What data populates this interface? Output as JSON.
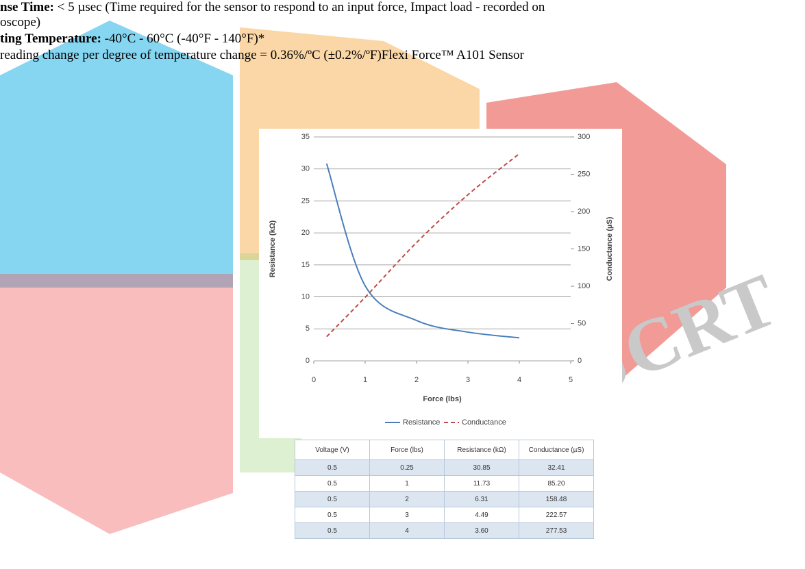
{
  "lines": [
    {
      "label": "nse Time:",
      "text": " < 5 µsec (Time required for the sensor to respond to an input force, Impact load - recorded on"
    },
    {
      "text": "oscope)"
    },
    {
      "label": "ting Temperature:",
      "text": " -40°C - 60°C (-40°F - 140°F)*"
    },
    {
      "text": "reading change per degree of temperature change = 0.36%/ºC (±0.2%/ºF)Flexi Force™ A101 Sensor"
    }
  ],
  "watermark": "JCRT",
  "chart_data": {
    "type": "line",
    "x_label": "Force (lbs)",
    "y_label": "Resistance (kΩ)",
    "y2_label": "Conductance (µS)",
    "x": [
      0.25,
      1,
      2,
      3,
      4
    ],
    "series": [
      {
        "name": "Resistance",
        "color": "#4a7ebb",
        "values": [
          30.85,
          11.73,
          6.31,
          4.49,
          3.6
        ]
      },
      {
        "name": "Conductance",
        "color": "#be4b48",
        "axis": "y2",
        "values": [
          32.41,
          85.2,
          158.48,
          222.57,
          277.53
        ]
      }
    ],
    "xlim": [
      0,
      5
    ],
    "xticks": [
      0,
      1,
      2,
      3,
      4,
      5
    ],
    "ylim": [
      0,
      35
    ],
    "yticks": [
      0,
      5,
      10,
      15,
      20,
      25,
      30,
      35
    ],
    "y2lim": [
      0,
      300
    ],
    "y2ticks": [
      0,
      50,
      100,
      150,
      200,
      250,
      300
    ],
    "grid": true,
    "legend": "bottom"
  },
  "table": {
    "header": [
      "Voltage (V)",
      "Force (lbs)",
      "Resistance (kΩ)",
      "Conductance (µS)"
    ],
    "rows": [
      [
        "0.5",
        "0.25",
        "30.85",
        "32.41"
      ],
      [
        "0.5",
        "1",
        "11.73",
        "85.20"
      ],
      [
        "0.5",
        "2",
        "6.31",
        "158.48"
      ],
      [
        "0.5",
        "3",
        "4.49",
        "222.57"
      ],
      [
        "0.5",
        "4",
        "3.60",
        "277.53"
      ]
    ]
  }
}
